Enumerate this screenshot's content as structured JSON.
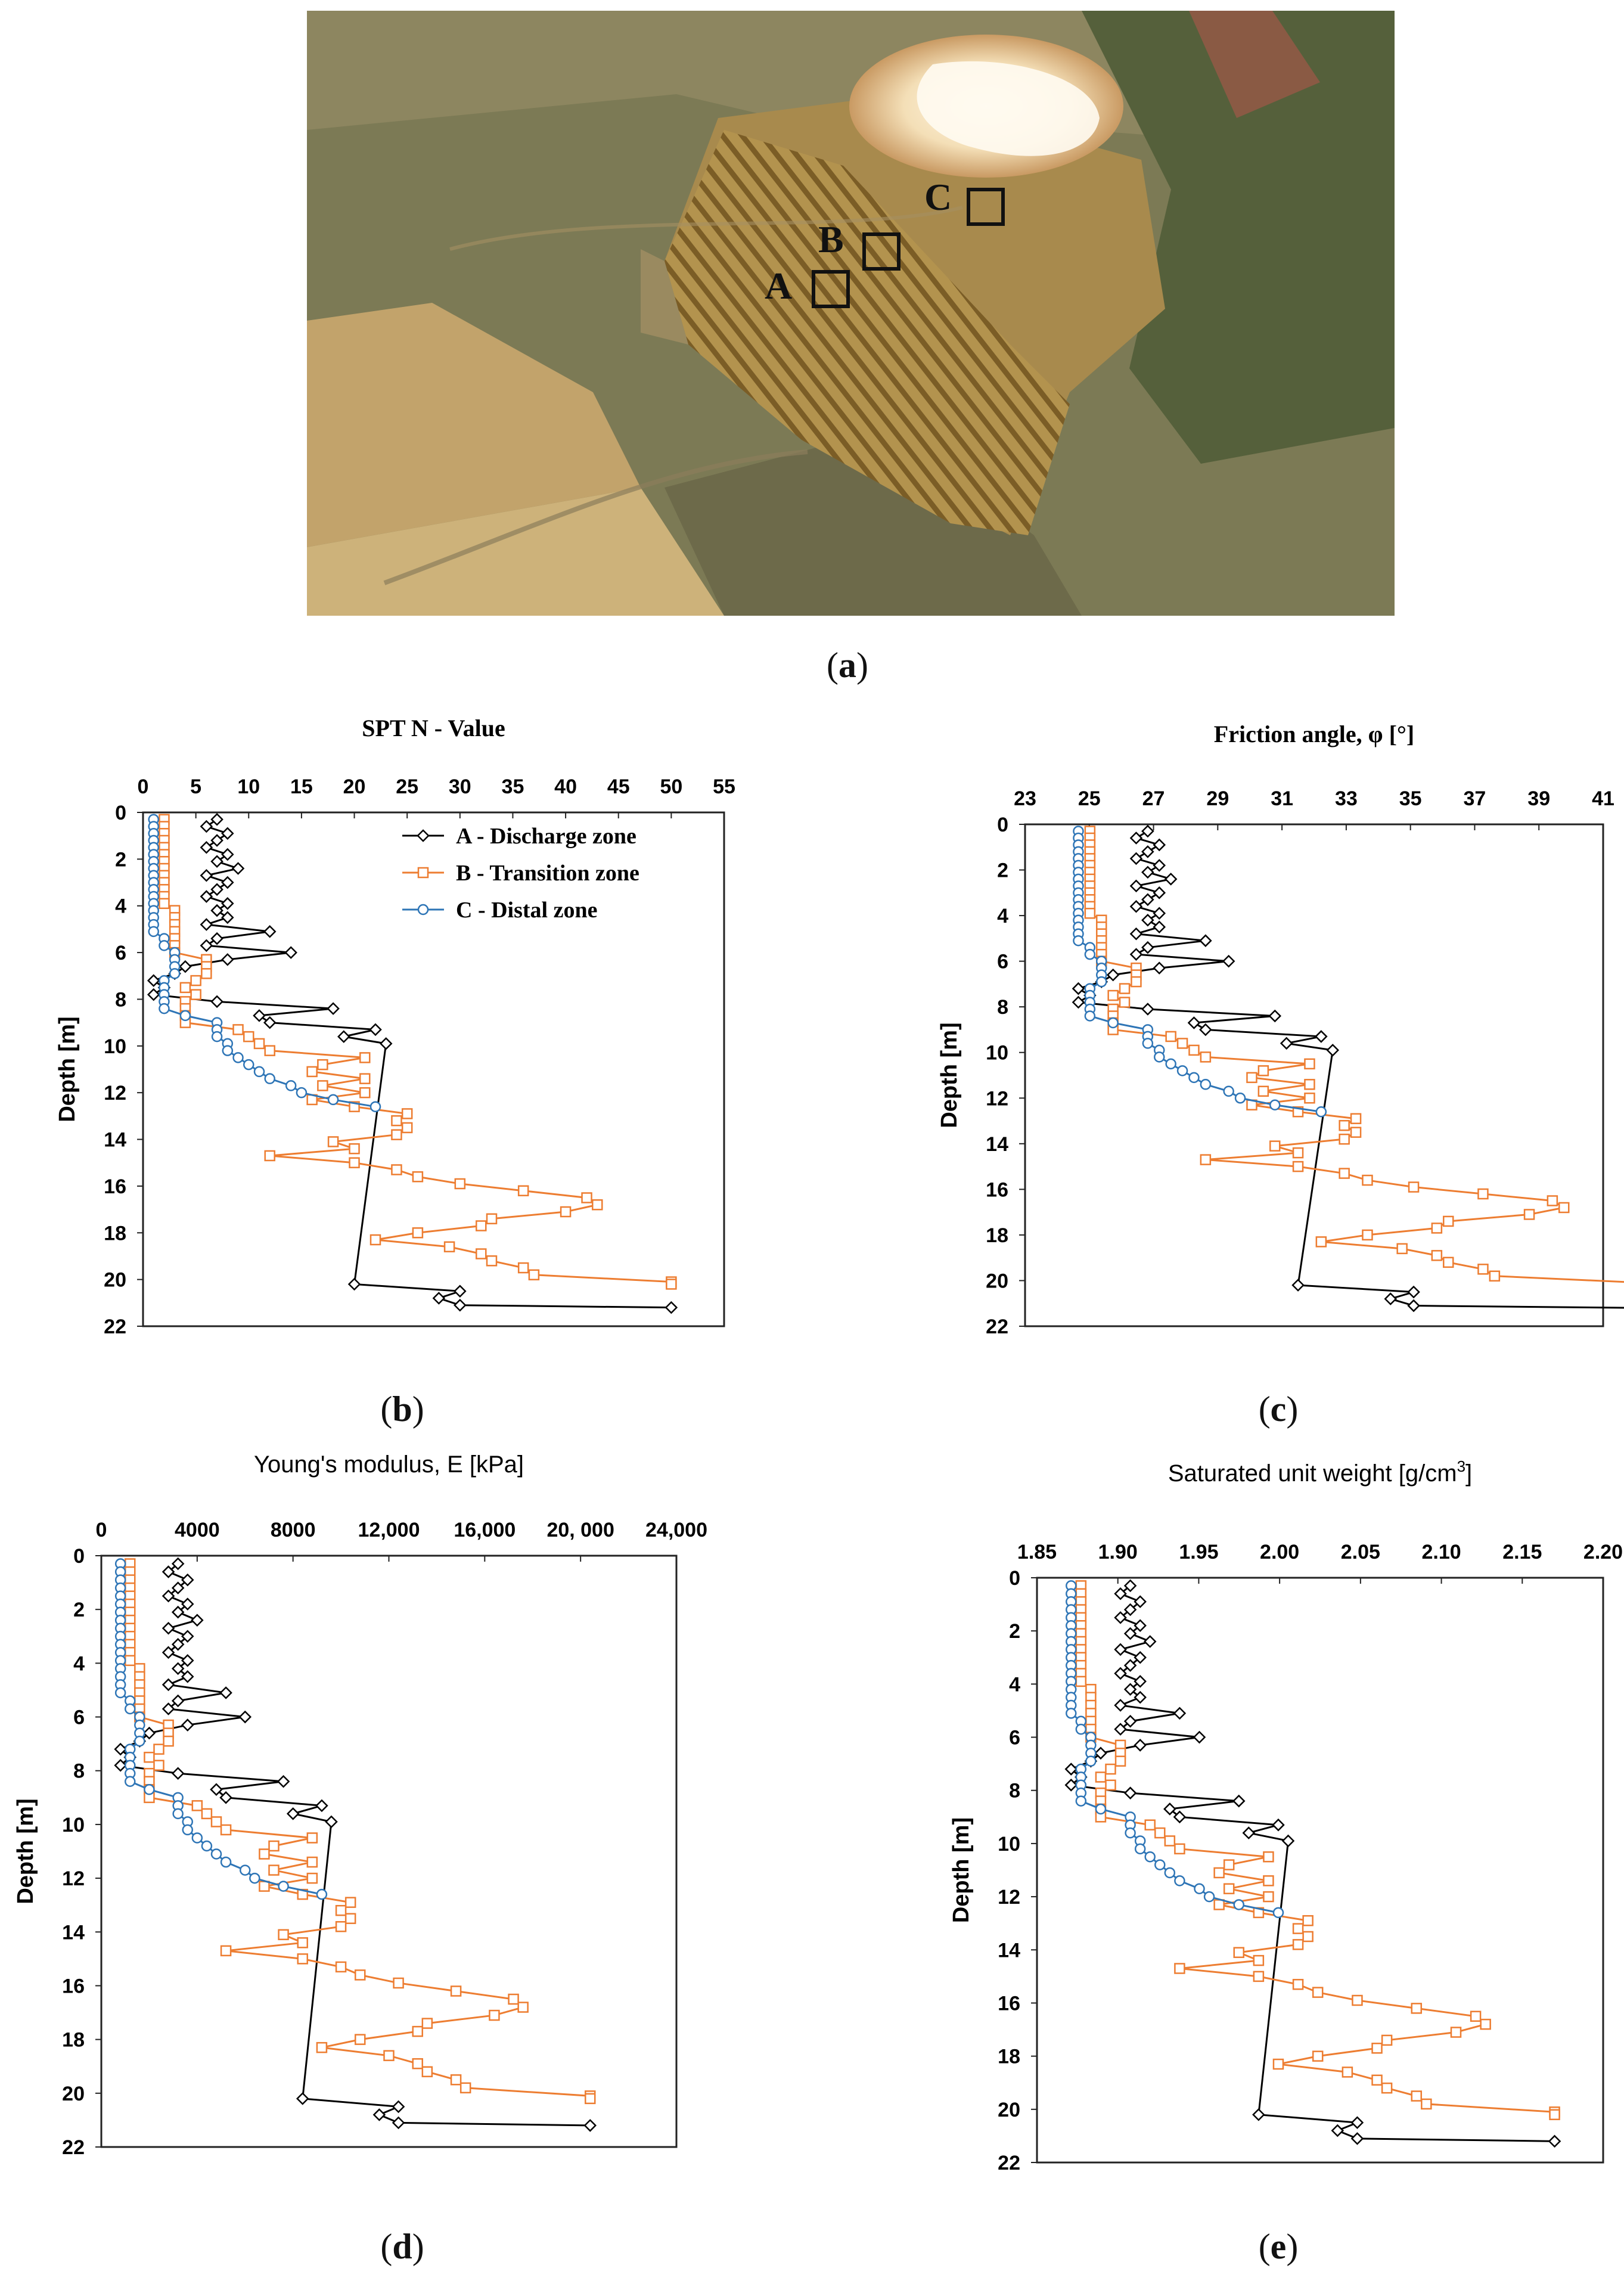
{
  "panels": {
    "a": "a",
    "b": "b",
    "c": "c",
    "d": "d",
    "e": "e"
  },
  "photo": {
    "site_markers": [
      "A",
      "B",
      "C"
    ],
    "colors": {
      "field": "#a7894b",
      "salt_flat": "#f6e8c9",
      "terraces": "#8a6b2e",
      "vegetation": "#4e5a36",
      "farmland": "#c9a86e"
    }
  },
  "legend": [
    {
      "label": "A - Discharge zone",
      "color": "#000000",
      "marker": "diamond"
    },
    {
      "label": "B - Transition zone",
      "color": "#ED7D31",
      "marker": "square"
    },
    {
      "label": "C - Distal zone",
      "color": "#2E75B6",
      "marker": "circle"
    }
  ],
  "chart_data": [
    {
      "id": "spt",
      "type": "line",
      "title": "SPT N - Value",
      "ylabel": "Depth [m]",
      "xlim": [
        0,
        55
      ],
      "ylim": [
        0,
        22
      ],
      "y_inverted": true,
      "x_ticks": [
        "0",
        "5",
        "10",
        "15",
        "20",
        "25",
        "30",
        "35",
        "40",
        "45",
        "50",
        "55"
      ],
      "y_ticks": [
        "0",
        "2",
        "4",
        "6",
        "8",
        "10",
        "12",
        "14",
        "16",
        "18",
        "20",
        "22"
      ]
    },
    {
      "id": "friction",
      "type": "line",
      "title": "Friction angle, φ [°]",
      "ylabel": "Depth [m]",
      "xlim": [
        23,
        41
      ],
      "ylim": [
        0,
        22
      ],
      "y_inverted": true,
      "x_ticks": [
        "23",
        "25",
        "27",
        "29",
        "31",
        "33",
        "35",
        "37",
        "39",
        "41"
      ],
      "y_ticks": [
        "0",
        "2",
        "4",
        "6",
        "8",
        "10",
        "12",
        "14",
        "16",
        "18",
        "20",
        "22"
      ]
    },
    {
      "id": "young",
      "type": "line",
      "title": "Young's modulus, E [kPa]",
      "ylabel": "Depth [m]",
      "xlim": [
        0,
        24000
      ],
      "ylim": [
        0,
        22
      ],
      "y_inverted": true,
      "x_ticks": [
        "0",
        "4000",
        "8000",
        "12,000",
        "16,000",
        "20, 000",
        "24,000"
      ],
      "y_ticks": [
        "0",
        "2",
        "4",
        "6",
        "8",
        "10",
        "12",
        "14",
        "16",
        "18",
        "20",
        "22"
      ]
    },
    {
      "id": "unitweight",
      "type": "line",
      "title": "Saturated unit weight [g/cm",
      "title_sup": "3",
      "title_end": "]",
      "ylabel": "Depth [m]",
      "xlim": [
        1.85,
        2.2
      ],
      "ylim": [
        0,
        22
      ],
      "y_inverted": true,
      "x_ticks": [
        "1.85",
        "1.90",
        "1.95",
        "2.00",
        "2.05",
        "2.10",
        "2.15",
        "2.20"
      ],
      "y_ticks": [
        "0",
        "2",
        "4",
        "6",
        "8",
        "10",
        "12",
        "14",
        "16",
        "18",
        "20",
        "22"
      ]
    }
  ],
  "profiles": {
    "depths": [
      0.3,
      0.6,
      0.9,
      1.2,
      1.5,
      1.8,
      2.1,
      2.4,
      2.7,
      3.0,
      3.3,
      3.6,
      3.9,
      4.2,
      4.5,
      4.8,
      5.1,
      5.4,
      5.7,
      6.0,
      6.3,
      6.6,
      6.9,
      7.2,
      7.5,
      7.8,
      8.1,
      8.4,
      8.7,
      9.0,
      9.3,
      9.6,
      9.9,
      10.2,
      10.5,
      10.8,
      11.1,
      11.4,
      11.7,
      12.0,
      12.3,
      12.6,
      12.9,
      13.2,
      13.5,
      13.8,
      14.1,
      14.4,
      14.7,
      15.0,
      15.3,
      15.6,
      15.9,
      16.2,
      16.5,
      16.8,
      17.1,
      17.4,
      17.7,
      18.0,
      18.3,
      18.6,
      18.9,
      19.2,
      19.5,
      19.8,
      20.1,
      20.4,
      20.7,
      21.0
    ],
    "spt": {
      "A": {
        "depth": [
          0.3,
          0.6,
          0.9,
          1.2,
          1.5,
          1.8,
          2.1,
          2.4,
          2.7,
          3.0,
          3.3,
          3.6,
          3.9,
          4.2,
          4.5,
          4.8,
          5.1,
          5.4,
          5.7,
          6.0,
          6.3,
          6.6,
          6.9,
          7.2,
          7.5,
          7.8,
          8.1,
          8.4,
          8.7,
          9.0,
          9.3,
          9.6,
          9.9,
          20.2,
          20.5,
          20.8,
          21.1,
          21.2
        ],
        "value": [
          7,
          6,
          8,
          7,
          6,
          8,
          7,
          9,
          6,
          8,
          7,
          6,
          8,
          7,
          8,
          6,
          12,
          7,
          6,
          14,
          8,
          4,
          3,
          1,
          2,
          1,
          7,
          18,
          11,
          12,
          22,
          19,
          23,
          20,
          30,
          28,
          30,
          50
        ]
      },
      "B": {
        "depth": [
          0.3,
          0.6,
          0.9,
          1.2,
          1.5,
          1.8,
          2.1,
          2.4,
          2.7,
          3.0,
          3.3,
          3.6,
          3.9,
          4.2,
          4.5,
          4.8,
          5.1,
          5.4,
          5.7,
          6.0,
          6.3,
          6.6,
          6.9,
          7.2,
          7.5,
          7.8,
          8.1,
          8.4,
          8.7,
          9.0,
          9.3,
          9.6,
          9.9,
          10.2,
          10.5,
          10.8,
          11.1,
          11.4,
          11.7,
          12.0,
          12.3,
          12.6,
          12.9,
          13.2,
          13.5,
          13.8,
          14.1,
          14.4,
          14.7,
          15.0,
          15.3,
          15.6,
          15.9,
          16.2,
          16.5,
          16.8,
          17.1,
          17.4,
          17.7,
          18.0,
          18.3,
          18.6,
          18.9,
          19.2,
          19.5,
          19.8,
          20.1,
          20.2
        ],
        "value": [
          2,
          2,
          2,
          2,
          2,
          2,
          2,
          2,
          2,
          2,
          2,
          2,
          2,
          3,
          3,
          3,
          3,
          3,
          3,
          3,
          6,
          6,
          6,
          5,
          4,
          5,
          4,
          4,
          4,
          4,
          9,
          10,
          11,
          12,
          21,
          17,
          16,
          21,
          17,
          21,
          16,
          20,
          25,
          24,
          25,
          24,
          18,
          20,
          12,
          20,
          24,
          26,
          30,
          36,
          42,
          43,
          40,
          33,
          32,
          26,
          22,
          29,
          32,
          33,
          36,
          37,
          50,
          50
        ]
      },
      "C": {
        "depth": [
          0.3,
          0.6,
          0.9,
          1.2,
          1.5,
          1.8,
          2.1,
          2.4,
          2.7,
          3.0,
          3.3,
          3.6,
          3.9,
          4.2,
          4.5,
          4.8,
          5.1,
          5.4,
          5.7,
          6.0,
          6.3,
          6.6,
          6.9,
          7.2,
          7.5,
          7.8,
          8.1,
          8.4,
          8.7,
          9.0,
          9.3,
          9.6,
          9.9,
          10.2,
          10.5,
          10.8,
          11.1,
          11.4,
          11.7,
          12.0,
          12.3,
          12.6
        ],
        "value": [
          1,
          1,
          1,
          1,
          1,
          1,
          1,
          1,
          1,
          1,
          1,
          1,
          1,
          1,
          1,
          1,
          1,
          2,
          2,
          3,
          3,
          3,
          3,
          2,
          2,
          2,
          2,
          2,
          4,
          7,
          7,
          7,
          8,
          8,
          9,
          10,
          11,
          12,
          14,
          15,
          18,
          22
        ]
      }
    }
  }
}
